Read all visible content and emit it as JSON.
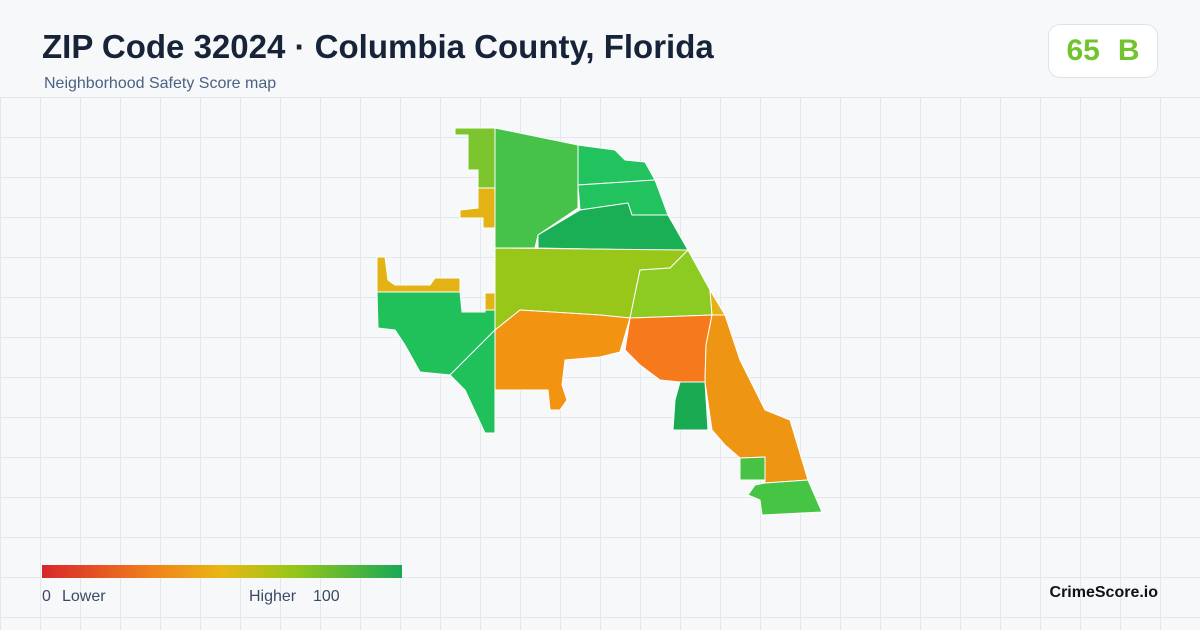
{
  "header": {
    "title": "ZIP Code 32024 · Columbia County, Florida",
    "subtitle": "Neighborhood Safety Score map"
  },
  "score": {
    "value": 65,
    "grade": "B"
  },
  "legend": {
    "min": 0,
    "min_label": "Lower",
    "max_label": "Higher",
    "max": 100
  },
  "brand": "CrimeScore.io"
}
